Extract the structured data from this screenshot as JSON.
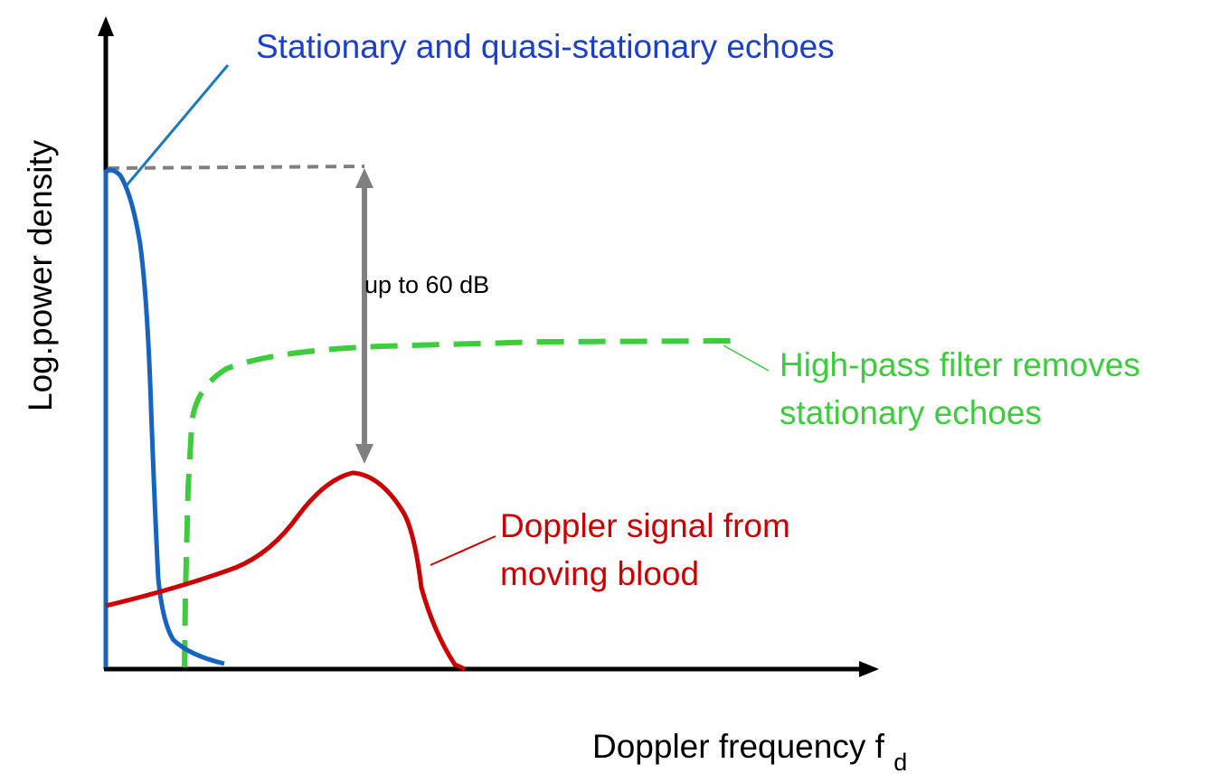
{
  "colors": {
    "axis": "#000000",
    "stationary": "#1565C0",
    "stationary_label": "#1a3fcf",
    "filter": "#3ccc3c",
    "doppler": "#cc0000",
    "range": "#808080",
    "leader_blue": "#1a7ac0",
    "leader_green": "#3ccc3c",
    "leader_red": "#cc0000"
  },
  "axes": {
    "y_label": "Log.power density",
    "x_label_main": "Doppler frequency f",
    "x_label_sub": "d"
  },
  "labels": {
    "stationary": "Stationary and quasi-stationary echoes",
    "filter_line1": "High-pass filter removes",
    "filter_line2": "stationary echoes",
    "doppler_line1": "Doppler signal from",
    "doppler_line2": "moving blood",
    "dynamic_range": "up to 60 dB"
  }
}
